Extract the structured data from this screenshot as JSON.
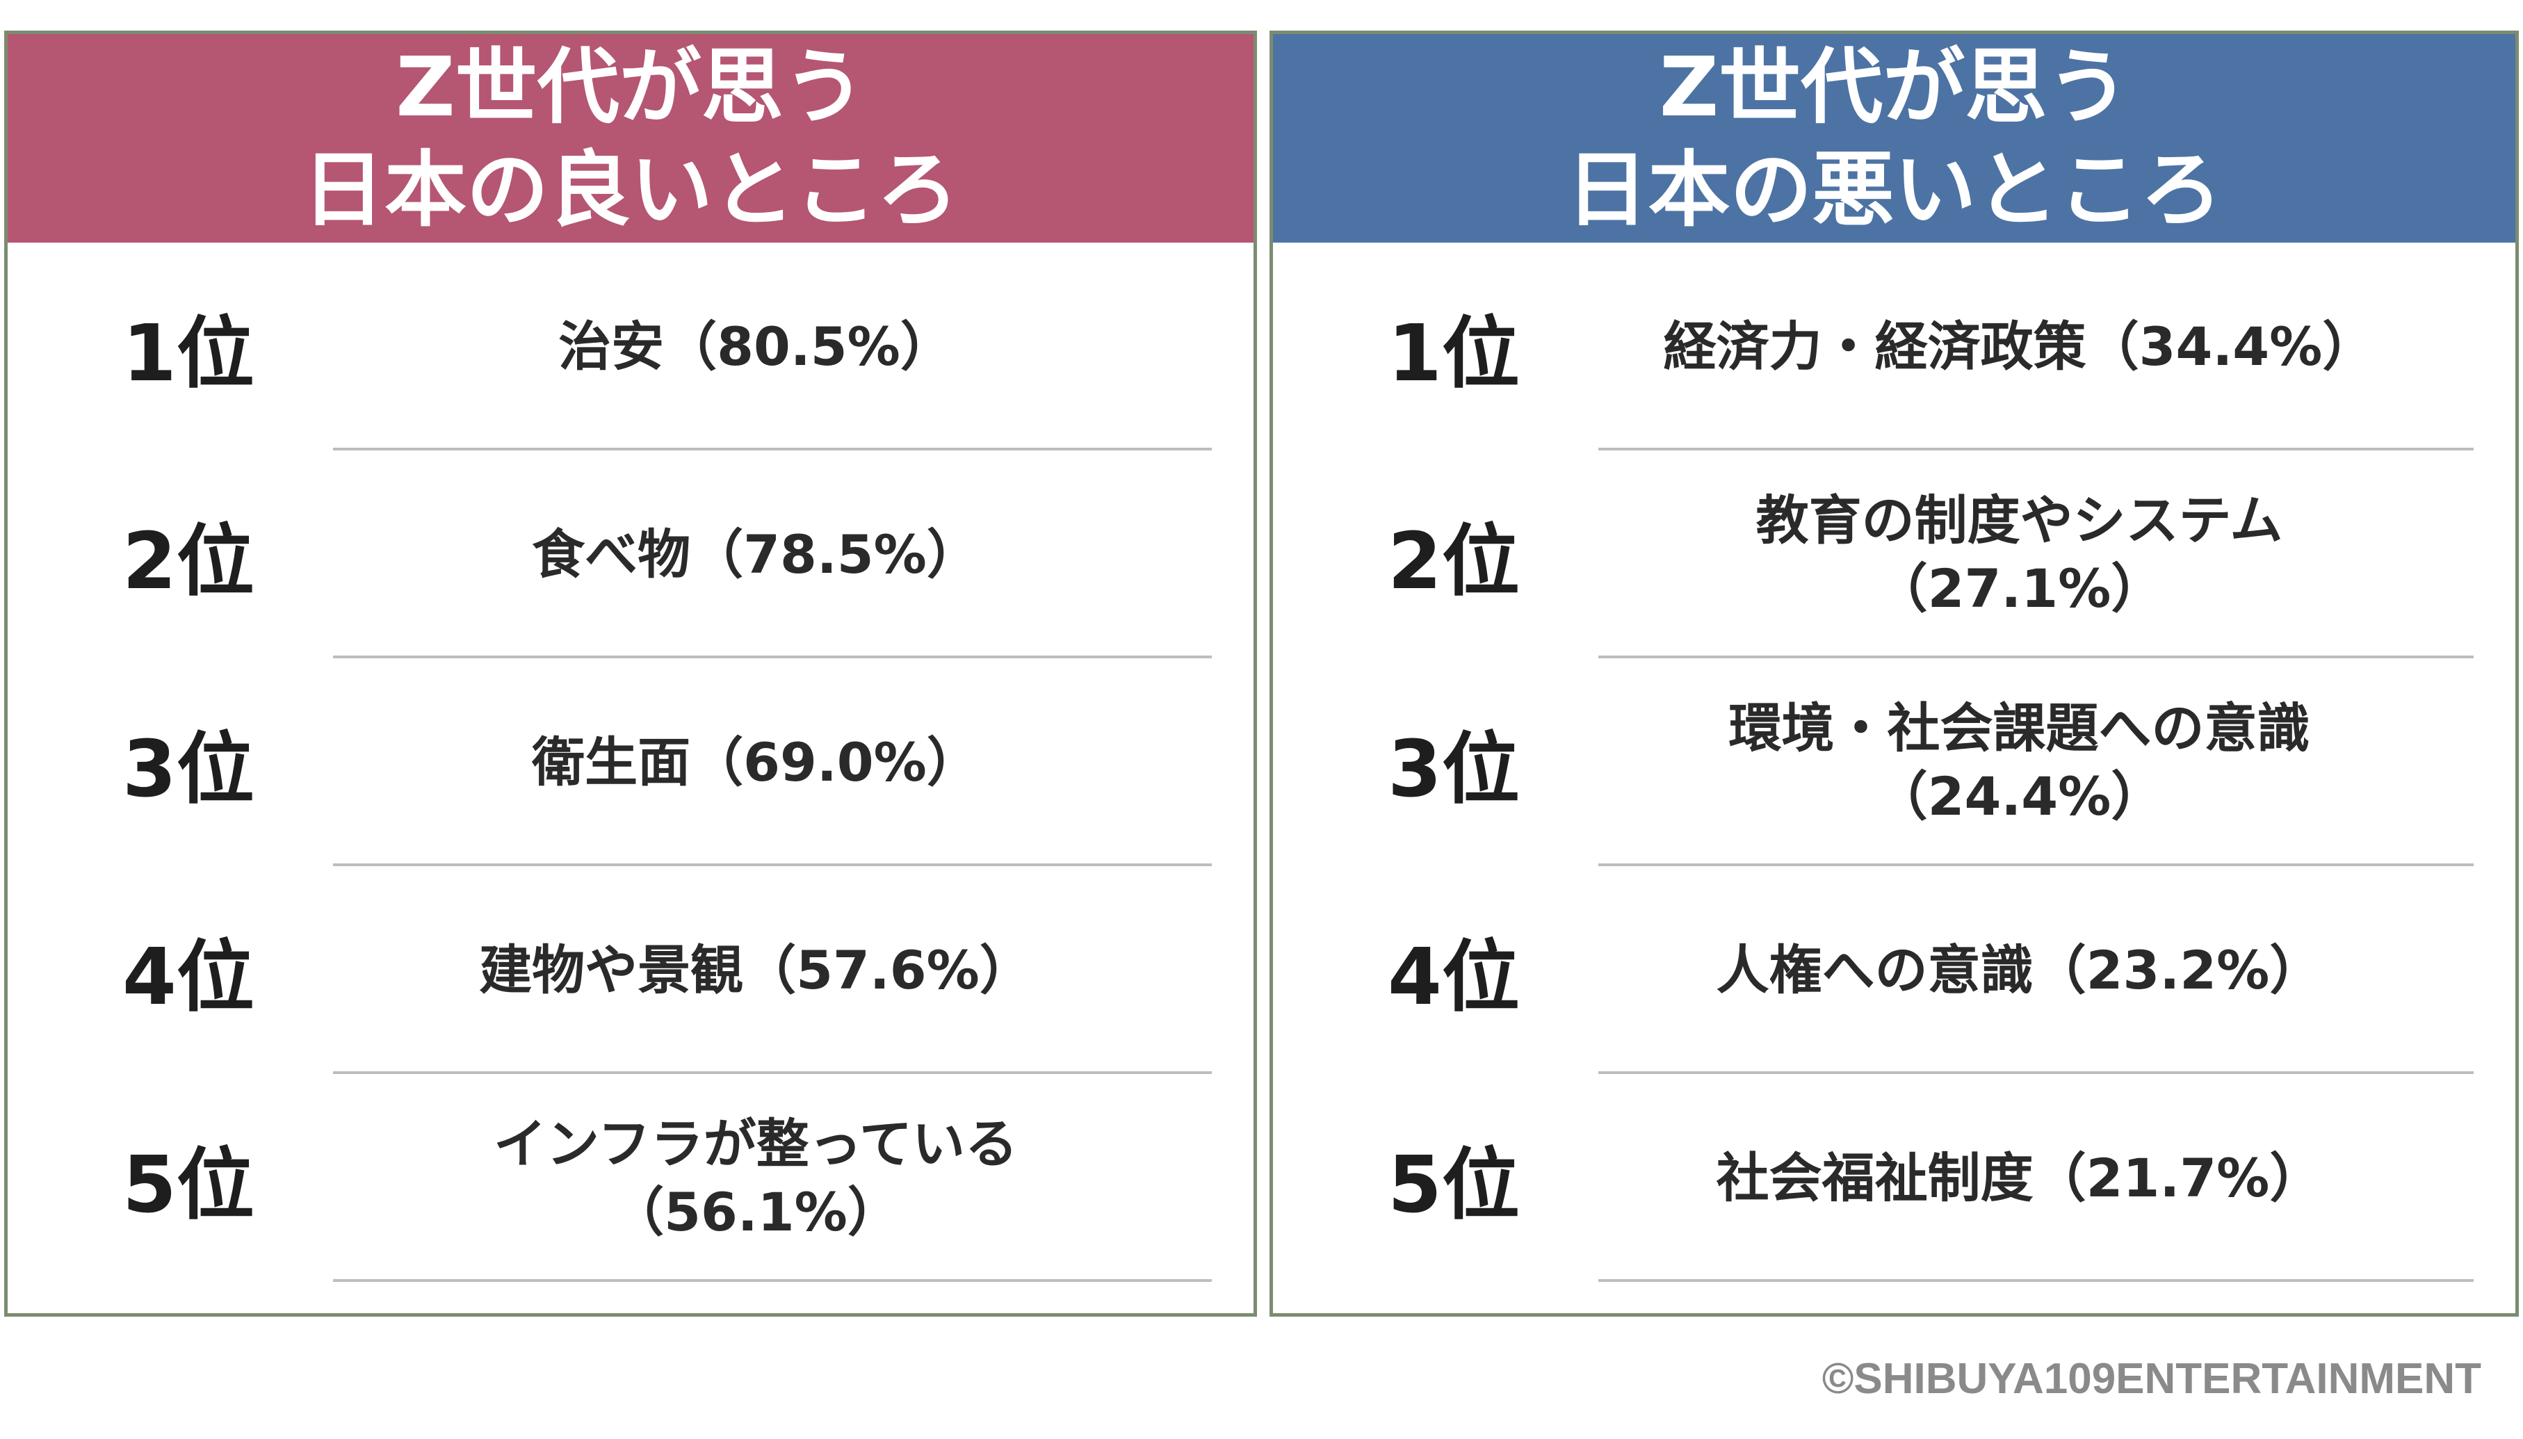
{
  "colors": {
    "good_header": "#b55672",
    "bad_header": "#4d73a4",
    "border": "#7b8c70"
  },
  "chart_data": [
    {
      "type": "table",
      "title_lines": [
        "Z世代が思う",
        "日本の良いところ"
      ],
      "ranks": [
        "1位",
        "2位",
        "3位",
        "4位",
        "5位"
      ],
      "items": [
        {
          "lines": [
            "治安（80.5%）"
          ],
          "label": "治安",
          "value": 80.5
        },
        {
          "lines": [
            "食べ物（78.5%）"
          ],
          "label": "食べ物",
          "value": 78.5
        },
        {
          "lines": [
            "衛生面（69.0%）"
          ],
          "label": "衛生面",
          "value": 69.0
        },
        {
          "lines": [
            "建物や景観（57.6%）"
          ],
          "label": "建物や景観",
          "value": 57.6
        },
        {
          "lines": [
            "インフラが整っている",
            "（56.1%）"
          ],
          "label": "インフラが整っている",
          "value": 56.1
        }
      ]
    },
    {
      "type": "table",
      "title_lines": [
        "Z世代が思う",
        "日本の悪いところ"
      ],
      "ranks": [
        "1位",
        "2位",
        "3位",
        "4位",
        "5位"
      ],
      "items": [
        {
          "lines": [
            "経済力・経済政策（34.4%）"
          ],
          "label": "経済力・経済政策",
          "value": 34.4
        },
        {
          "lines": [
            "教育の制度やシステム",
            "（27.1%）"
          ],
          "label": "教育の制度やシステム",
          "value": 27.1
        },
        {
          "lines": [
            "環境・社会課題への意識",
            "（24.4%）"
          ],
          "label": "環境・社会課題への意識",
          "value": 24.4
        },
        {
          "lines": [
            "人権への意識（23.2%）"
          ],
          "label": "人権への意識",
          "value": 23.2
        },
        {
          "lines": [
            "社会福祉制度（21.7%）"
          ],
          "label": "社会福祉制度",
          "value": 21.7
        }
      ]
    }
  ],
  "copyright": "©SHIBUYA109ENTERTAINMENT"
}
